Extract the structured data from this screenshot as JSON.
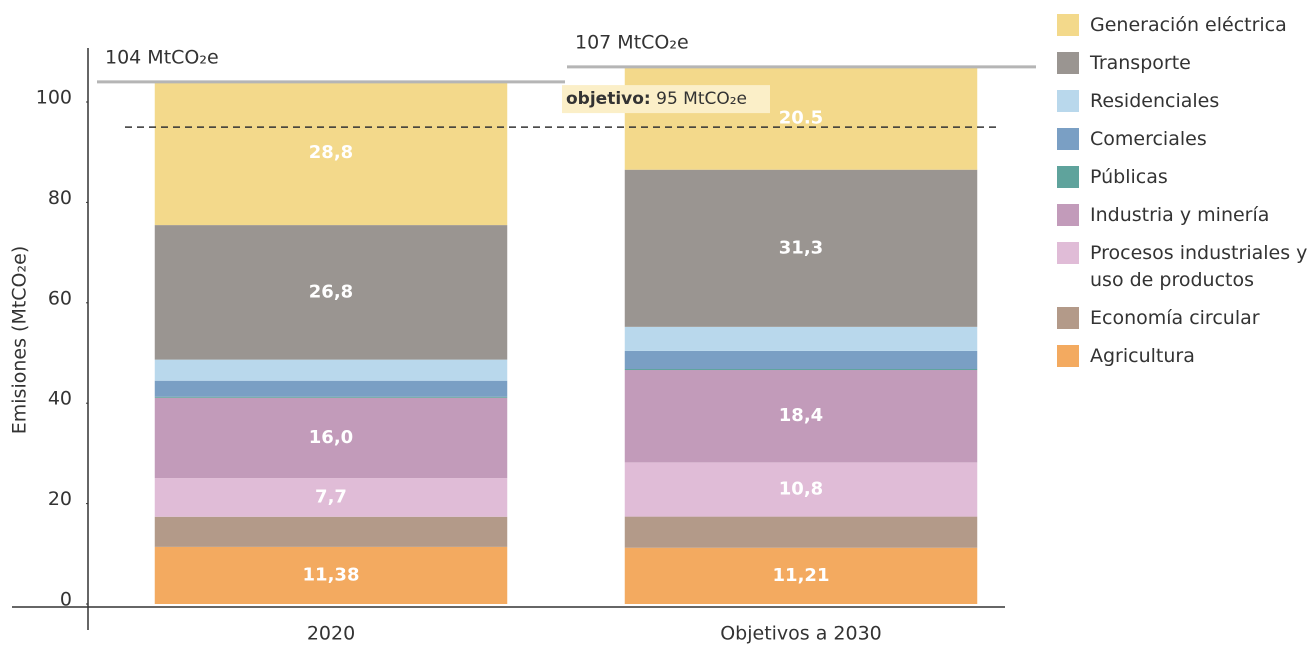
{
  "chart_data": {
    "type": "stacked_bar",
    "ylabel": "Emisiones (MtCO₂e)",
    "categories": [
      "2020",
      "Objetivos a 2030"
    ],
    "ylim": [
      0,
      110
    ],
    "yticks": [
      0,
      20,
      40,
      60,
      80,
      100
    ],
    "series": [
      {
        "name": "Agricultura",
        "color": "#f3aa60",
        "values": [
          11.38,
          11.21
        ],
        "value_labels": [
          "11,38",
          "11,21"
        ]
      },
      {
        "name": "Economía circular",
        "color": "#b39a89",
        "values": [
          6.0,
          6.2
        ],
        "value_labels": [
          null,
          null
        ]
      },
      {
        "name": "Procesos industriales y uso de productos",
        "color": "#e0bcd7",
        "values": [
          7.7,
          10.8
        ],
        "value_labels": [
          "7,7",
          "10,8"
        ]
      },
      {
        "name": "Industria y minería",
        "color": "#c29bba",
        "values": [
          16.0,
          18.4
        ],
        "value_labels": [
          "16,0",
          "18,4"
        ]
      },
      {
        "name": "Públicas",
        "color": "#5fa39c",
        "values": [
          0.2,
          0.2
        ],
        "value_labels": [
          null,
          null
        ]
      },
      {
        "name": "Comerciales",
        "color": "#7a9fc4",
        "values": [
          3.2,
          3.6
        ],
        "value_labels": [
          null,
          null
        ]
      },
      {
        "name": "Residenciales",
        "color": "#b9d8ec",
        "values": [
          4.2,
          4.8
        ],
        "value_labels": [
          null,
          null
        ]
      },
      {
        "name": "Transporte",
        "color": "#9a9591",
        "values": [
          26.8,
          31.3
        ],
        "value_labels": [
          "26,8",
          "31,3"
        ]
      },
      {
        "name": "Generación eléctrica",
        "color": "#f3d98b",
        "values": [
          28.8,
          20.5
        ],
        "value_labels": [
          "28,8",
          "20.5"
        ]
      }
    ],
    "totals": [
      {
        "value": 104,
        "label": "104 MtCO₂e"
      },
      {
        "value": 107,
        "label": "107 MtCO₂e"
      }
    ],
    "target": {
      "prefix": "objetivo:",
      "value": 95,
      "label": "95 MtCO₂e"
    }
  }
}
